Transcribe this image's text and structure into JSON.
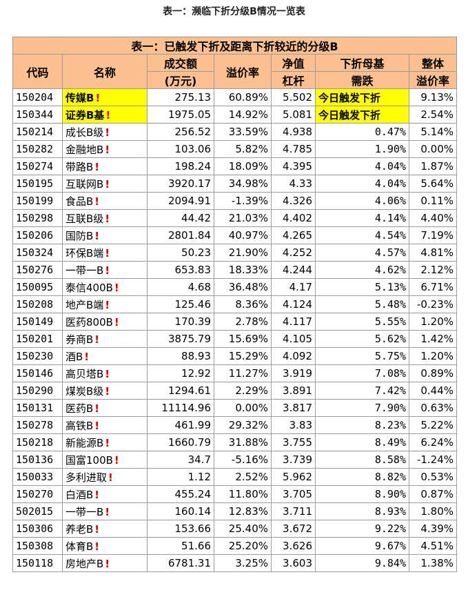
{
  "caption": "表一：濒临下折分级B情况一览表",
  "table": {
    "title": "表一：已触发下折及距离下折较近的分级B",
    "headers": {
      "code": "代码",
      "name": "名称",
      "volume_1": "成交额",
      "volume_2": "(万元)",
      "premium": "溢价率",
      "nav_1": "净值",
      "nav_2": "杠杆",
      "drop_1": "下折母基",
      "drop_2": "需跌",
      "total_1": "整体",
      "total_2": "溢价率"
    },
    "warning_mark": "!",
    "highlight_color": "#ffff00",
    "header_color": "#fac090",
    "mark_color": "#e00000",
    "rows": [
      {
        "code": "150204",
        "name": "传媒B",
        "volume": "275.13",
        "premium": "60.89%",
        "leverage": "5.502",
        "drop": "今日触发下折",
        "total": "9.13%",
        "triggered": true
      },
      {
        "code": "150344",
        "name": "证券B基",
        "volume": "1975.05",
        "premium": "14.92%",
        "leverage": "5.081",
        "drop": "今日触发下折",
        "total": "2.54%",
        "triggered": true
      },
      {
        "code": "150214",
        "name": "成长B级",
        "volume": "256.52",
        "premium": "33.59%",
        "leverage": "4.938",
        "drop": "0.47%",
        "total": "5.14%"
      },
      {
        "code": "150282",
        "name": "金融地B",
        "volume": "103.06",
        "premium": "5.82%",
        "leverage": "4.785",
        "drop": "1.90%",
        "total": "0.00%"
      },
      {
        "code": "150274",
        "name": "带路B",
        "volume": "198.24",
        "premium": "18.09%",
        "leverage": "4.395",
        "drop": "4.04%",
        "total": "1.87%"
      },
      {
        "code": "150195",
        "name": "互联网B",
        "volume": "3920.17",
        "premium": "34.98%",
        "leverage": "4.33",
        "drop": "4.04%",
        "total": "5.64%"
      },
      {
        "code": "150199",
        "name": "食品B",
        "volume": "2094.91",
        "premium": "-1.39%",
        "leverage": "4.326",
        "drop": "4.06%",
        "total": "0.11%"
      },
      {
        "code": "150298",
        "name": "互联B级",
        "volume": "44.42",
        "premium": "21.03%",
        "leverage": "4.402",
        "drop": "4.14%",
        "total": "4.40%"
      },
      {
        "code": "150206",
        "name": "国防B",
        "volume": "2801.84",
        "premium": "40.97%",
        "leverage": "4.265",
        "drop": "4.54%",
        "total": "7.19%"
      },
      {
        "code": "150324",
        "name": "环保B端",
        "volume": "50.23",
        "premium": "21.90%",
        "leverage": "4.252",
        "drop": "4.57%",
        "total": "4.81%"
      },
      {
        "code": "150276",
        "name": "一带一B",
        "volume": "653.83",
        "premium": "18.33%",
        "leverage": "4.244",
        "drop": "4.62%",
        "total": "2.12%"
      },
      {
        "code": "150095",
        "name": "泰信400B",
        "volume": "4.68",
        "premium": "36.48%",
        "leverage": "4.17",
        "drop": "5.13%",
        "total": "6.71%"
      },
      {
        "code": "150208",
        "name": "地产B端",
        "volume": "125.46",
        "premium": "8.36%",
        "leverage": "4.124",
        "drop": "5.48%",
        "total": "-0.23%"
      },
      {
        "code": "150149",
        "name": "医药800B",
        "volume": "170.39",
        "premium": "2.78%",
        "leverage": "4.117",
        "drop": "5.55%",
        "total": "1.20%"
      },
      {
        "code": "150201",
        "name": "券商B",
        "volume": "3875.79",
        "premium": "15.69%",
        "leverage": "4.105",
        "drop": "5.62%",
        "total": "1.42%"
      },
      {
        "code": "150230",
        "name": "酒B",
        "volume": "88.93",
        "premium": "15.29%",
        "leverage": "4.092",
        "drop": "5.75%",
        "total": "1.20%"
      },
      {
        "code": "150146",
        "name": "高贝塔B",
        "volume": "12.92",
        "premium": "11.27%",
        "leverage": "3.919",
        "drop": "7.08%",
        "total": "0.89%"
      },
      {
        "code": "150290",
        "name": "煤炭B级",
        "volume": "1294.61",
        "premium": "2.29%",
        "leverage": "3.891",
        "drop": "7.42%",
        "total": "0.44%"
      },
      {
        "code": "150131",
        "name": "医药B",
        "volume": "11114.96",
        "premium": "0.00%",
        "leverage": "3.817",
        "drop": "7.90%",
        "total": "0.63%"
      },
      {
        "code": "150278",
        "name": "高铁B",
        "volume": "461.99",
        "premium": "29.32%",
        "leverage": "3.83",
        "drop": "8.23%",
        "total": "5.22%"
      },
      {
        "code": "150218",
        "name": "新能源B",
        "volume": "1660.79",
        "premium": "31.88%",
        "leverage": "3.755",
        "drop": "8.49%",
        "total": "6.24%"
      },
      {
        "code": "150136",
        "name": "国富100B",
        "volume": "34.7",
        "premium": "-5.16%",
        "leverage": "3.739",
        "drop": "8.58%",
        "total": "-1.24%"
      },
      {
        "code": "150033",
        "name": "多利进取",
        "volume": "1.12",
        "premium": "2.52%",
        "leverage": "5.962",
        "drop": "8.82%",
        "total": "0.53%"
      },
      {
        "code": "150270",
        "name": "白酒B",
        "volume": "455.24",
        "premium": "11.80%",
        "leverage": "3.705",
        "drop": "8.90%",
        "total": "0.87%"
      },
      {
        "code": "502015",
        "name": "一带一B",
        "volume": "160.14",
        "premium": "12.83%",
        "leverage": "3.711",
        "drop": "8.93%",
        "total": "1.80%"
      },
      {
        "code": "150306",
        "name": "养老B",
        "volume": "153.66",
        "premium": "25.40%",
        "leverage": "3.672",
        "drop": "9.22%",
        "total": "4.39%"
      },
      {
        "code": "150308",
        "name": "体育B",
        "volume": "51.66",
        "premium": "25.20%",
        "leverage": "3.626",
        "drop": "9.67%",
        "total": "4.51%"
      },
      {
        "code": "150118",
        "name": "房地产B",
        "volume": "6781.31",
        "premium": "3.25%",
        "leverage": "3.603",
        "drop": "9.84%",
        "total": "1.38%"
      }
    ]
  }
}
